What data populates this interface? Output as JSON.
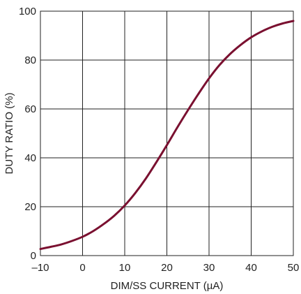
{
  "chart_data": {
    "type": "line",
    "title": "",
    "xlabel": "DIM/SS CURRENT (µA)",
    "ylabel": "DUTY RATIO (%)",
    "xlim": [
      -10,
      50
    ],
    "ylim": [
      0,
      100
    ],
    "x_ticks": [
      "–10",
      "0",
      "10",
      "20",
      "30",
      "40",
      "50"
    ],
    "y_ticks": [
      "0",
      "20",
      "40",
      "60",
      "80",
      "100"
    ],
    "grid": true,
    "series": [
      {
        "color": "#7a1030",
        "x": [
          -10,
          -7.5,
          -5,
          -2.5,
          0,
          2.5,
          5,
          7.5,
          10,
          12.5,
          15,
          17.5,
          20,
          22.5,
          25,
          27.5,
          30,
          32.5,
          35,
          37.5,
          40,
          42.5,
          45,
          47.5,
          50
        ],
        "y": [
          2.7,
          3.6,
          4.6,
          6.0,
          7.7,
          10.0,
          12.9,
          16.3,
          20.5,
          25.6,
          31.5,
          38.2,
          45.2,
          52.5,
          59.5,
          66.2,
          72.5,
          78.0,
          82.5,
          86.2,
          89.3,
          91.7,
          93.6,
          95.0,
          96.0
        ]
      }
    ]
  }
}
